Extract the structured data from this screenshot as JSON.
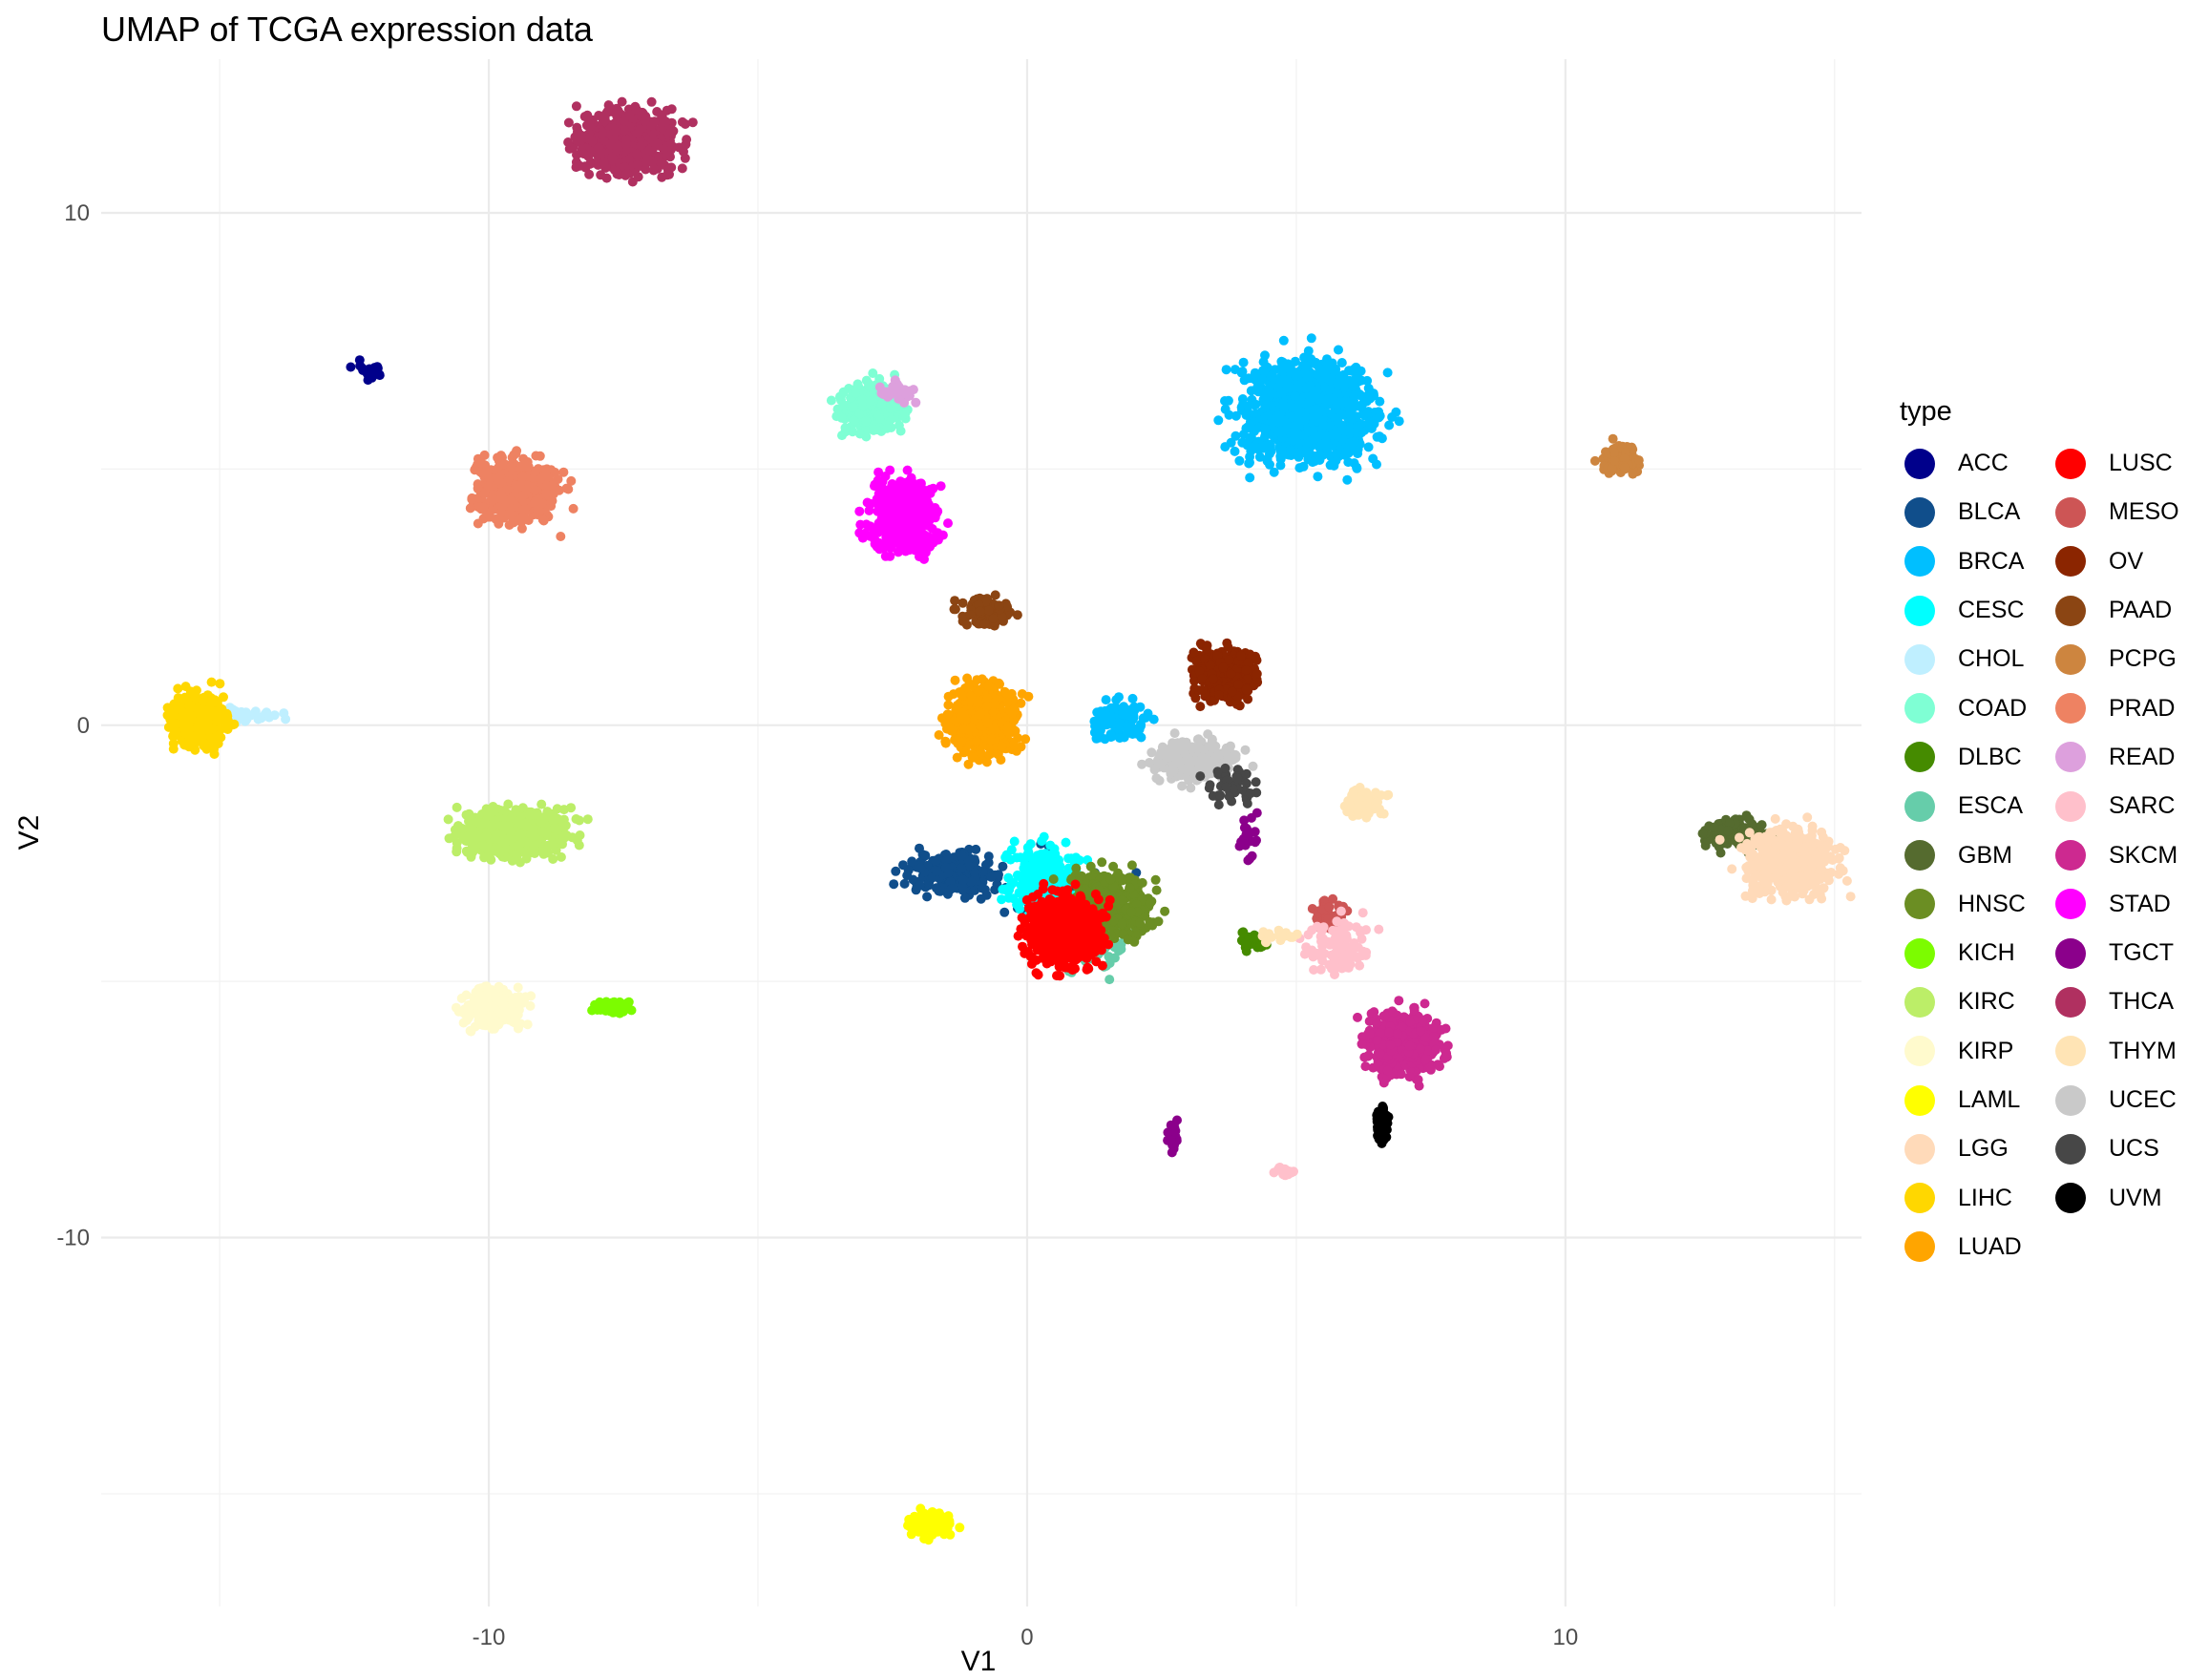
{
  "chart_data": {
    "type": "scatter",
    "title": "UMAP of TCGA expression data",
    "xlabel": "V1",
    "ylabel": "V2",
    "xlim": [
      -17.2,
      15.5
    ],
    "ylim": [
      -17.2,
      13.0
    ],
    "x_ticks": [
      -10,
      0,
      10
    ],
    "x_tick_labels": [
      "-10",
      "0",
      "10"
    ],
    "y_ticks": [
      10,
      0,
      -10
    ],
    "y_tick_labels": [
      "10",
      "0",
      "-10"
    ],
    "grid": true,
    "legend_title": "type",
    "legend_position": "right",
    "series": [
      {
        "name": "ACC",
        "color": "#00008B",
        "clusters": [
          [
            -12.2,
            6.9,
            0.25,
            0.18,
            25
          ]
        ]
      },
      {
        "name": "BLCA",
        "color": "#104E8B",
        "clusters": [
          [
            -1.4,
            -2.9,
            0.75,
            0.35,
            200
          ],
          [
            0.6,
            -3.2,
            1.2,
            0.7,
            40
          ]
        ]
      },
      {
        "name": "BRCA",
        "color": "#00BFFF",
        "clusters": [
          [
            5.2,
            6.1,
            1.1,
            0.9,
            1000
          ],
          [
            1.7,
            0.1,
            0.45,
            0.35,
            110
          ]
        ]
      },
      {
        "name": "CESC",
        "color": "#00FFFF",
        "clusters": [
          [
            0.3,
            -3.0,
            0.6,
            0.6,
            240
          ]
        ]
      },
      {
        "name": "CHOL",
        "color": "#BFEFFF",
        "clusters": [
          [
            -14.6,
            0.2,
            0.5,
            0.12,
            40
          ]
        ]
      },
      {
        "name": "COAD",
        "color": "#7FFFD4",
        "clusters": [
          [
            -2.9,
            6.2,
            0.5,
            0.45,
            300
          ]
        ]
      },
      {
        "name": "DLBC",
        "color": "#458B00",
        "clusters": [
          [
            4.2,
            -4.2,
            0.2,
            0.15,
            40
          ]
        ]
      },
      {
        "name": "ESCA",
        "color": "#66CDAA",
        "clusters": [
          [
            1.2,
            -4.2,
            0.7,
            0.5,
            120
          ]
        ]
      },
      {
        "name": "GBM",
        "color": "#556B2F",
        "clusters": [
          [
            13.2,
            -2.1,
            0.5,
            0.3,
            120
          ]
        ]
      },
      {
        "name": "HNSC",
        "color": "#6B8E23",
        "clusters": [
          [
            1.5,
            -3.5,
            0.7,
            0.55,
            400
          ]
        ]
      },
      {
        "name": "KICH",
        "color": "#7CFC00",
        "clusters": [
          [
            -7.7,
            -5.5,
            0.3,
            0.12,
            40
          ]
        ]
      },
      {
        "name": "KIRC",
        "color": "#BCEE68",
        "clusters": [
          [
            -9.5,
            -2.1,
            0.9,
            0.4,
            600
          ]
        ]
      },
      {
        "name": "KIRP",
        "color": "#FFFACD",
        "clusters": [
          [
            -9.9,
            -5.5,
            0.5,
            0.35,
            300
          ]
        ]
      },
      {
        "name": "LAML",
        "color": "#FFFF00",
        "clusters": [
          [
            -1.8,
            -15.6,
            0.35,
            0.2,
            130
          ]
        ]
      },
      {
        "name": "LGG",
        "color": "#FFDAB9",
        "clusters": [
          [
            14.2,
            -2.7,
            0.8,
            0.6,
            450
          ]
        ]
      },
      {
        "name": "LIHC",
        "color": "#FFD700",
        "clusters": [
          [
            -15.4,
            0.1,
            0.45,
            0.45,
            350
          ]
        ]
      },
      {
        "name": "LUAD",
        "color": "#FFA500",
        "clusters": [
          [
            -0.8,
            0.1,
            0.55,
            0.6,
            550
          ]
        ]
      },
      {
        "name": "LUSC",
        "color": "#FF0000",
        "clusters": [
          [
            0.7,
            -4.0,
            0.6,
            0.6,
            650
          ]
        ]
      },
      {
        "name": "MESO",
        "color": "#CD5555",
        "clusters": [
          [
            5.6,
            -3.7,
            0.25,
            0.3,
            60
          ]
        ]
      },
      {
        "name": "OV",
        "color": "#8B2500",
        "clusters": [
          [
            3.7,
            1.0,
            0.5,
            0.45,
            350
          ]
        ]
      },
      {
        "name": "PAAD",
        "color": "#8B4513",
        "clusters": [
          [
            -0.8,
            2.2,
            0.4,
            0.25,
            120
          ]
        ]
      },
      {
        "name": "PCPG",
        "color": "#CD853F",
        "clusters": [
          [
            11.0,
            5.2,
            0.3,
            0.25,
            120
          ]
        ]
      },
      {
        "name": "PRAD",
        "color": "#EE8262",
        "clusters": [
          [
            -9.5,
            4.6,
            0.65,
            0.55,
            550
          ]
        ]
      },
      {
        "name": "READ",
        "color": "#DDA0DD",
        "clusters": [
          [
            -2.4,
            6.5,
            0.3,
            0.2,
            30
          ]
        ]
      },
      {
        "name": "SARC",
        "color": "#FFC0CB",
        "clusters": [
          [
            5.8,
            -4.3,
            0.5,
            0.45,
            100
          ],
          [
            4.8,
            -8.7,
            0.2,
            0.1,
            20
          ]
        ]
      },
      {
        "name": "SKCM",
        "color": "#CD2990",
        "clusters": [
          [
            7.0,
            -6.2,
            0.6,
            0.55,
            500
          ]
        ]
      },
      {
        "name": "STAD",
        "color": "#FF00FF",
        "clusters": [
          [
            -2.3,
            4.1,
            0.55,
            0.65,
            400
          ]
        ]
      },
      {
        "name": "TGCT",
        "color": "#8B008B",
        "clusters": [
          [
            2.7,
            -8.0,
            0.1,
            0.25,
            40
          ],
          [
            4.1,
            -2.2,
            0.15,
            0.4,
            25
          ]
        ]
      },
      {
        "name": "THCA",
        "color": "#B03060",
        "clusters": [
          [
            -7.4,
            11.4,
            0.8,
            0.55,
            650
          ]
        ]
      },
      {
        "name": "THYM",
        "color": "#FFE4B5",
        "clusters": [
          [
            6.3,
            -1.5,
            0.35,
            0.25,
            60
          ],
          [
            4.7,
            -4.1,
            0.3,
            0.1,
            20
          ]
        ]
      },
      {
        "name": "UCEC",
        "color": "#C9C9C9",
        "clusters": [
          [
            3.1,
            -0.7,
            0.7,
            0.35,
            300
          ]
        ]
      },
      {
        "name": "UCS",
        "color": "#474747",
        "clusters": [
          [
            3.8,
            -1.2,
            0.5,
            0.4,
            45
          ]
        ]
      },
      {
        "name": "UVM",
        "color": "#000000",
        "clusters": [
          [
            6.6,
            -7.8,
            0.1,
            0.3,
            70
          ]
        ]
      }
    ],
    "cluster_format": [
      "x_center",
      "y_center",
      "x_spread",
      "y_spread",
      "point_count"
    ]
  }
}
